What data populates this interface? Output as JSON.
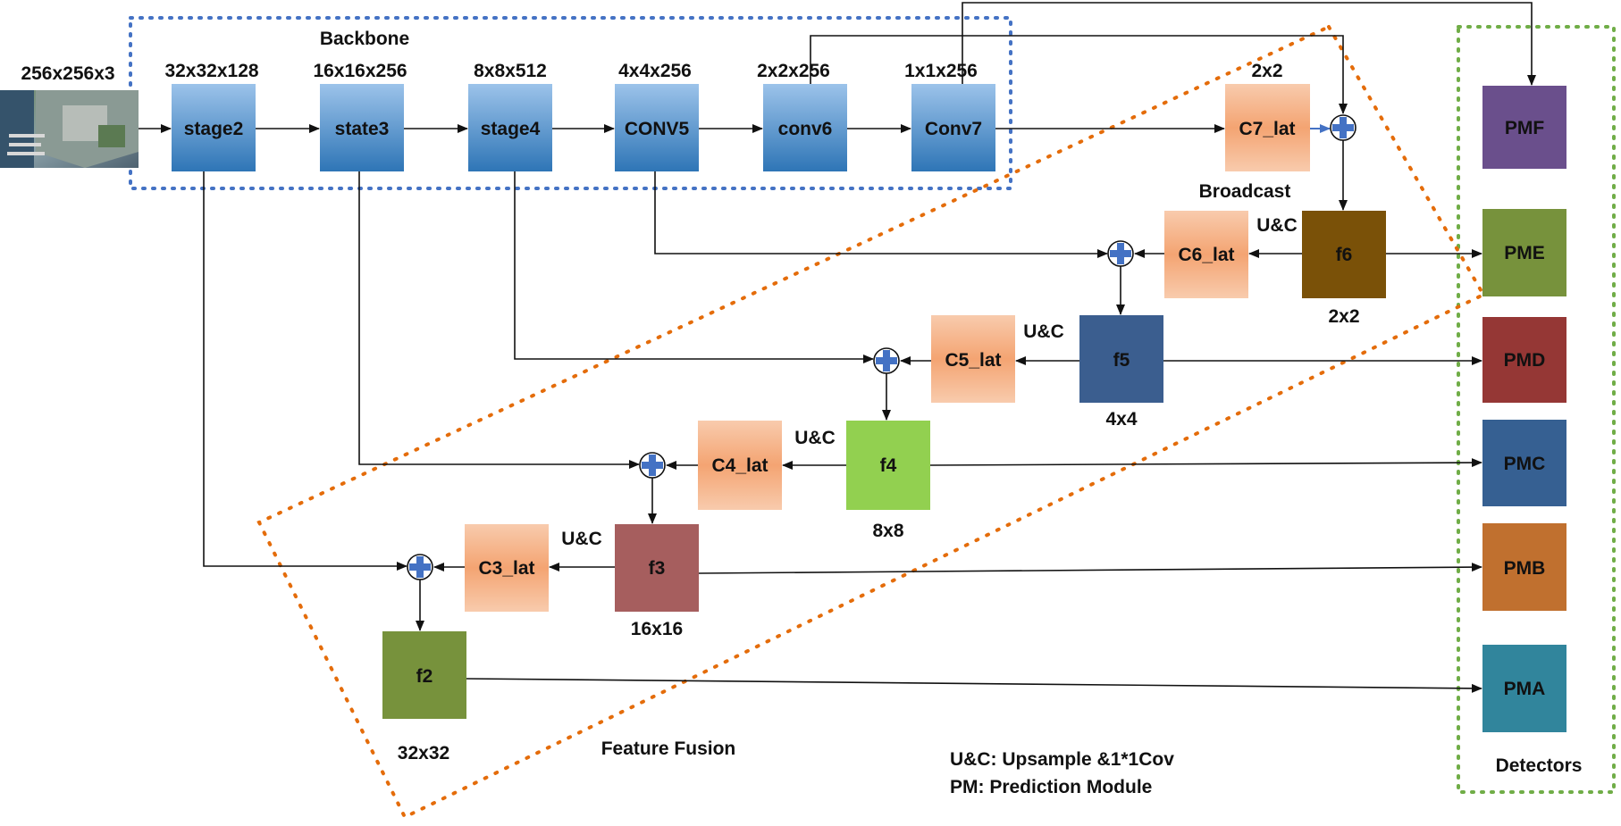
{
  "input": {
    "size_label": "256x256x3",
    "image_desc": "satellite-harbor-image"
  },
  "backbone": {
    "title": "Backbone",
    "stages": [
      {
        "name": "stage2",
        "size": "32x32x128"
      },
      {
        "name": "state3",
        "size": "16x16x256"
      },
      {
        "name": "stage4",
        "size": "8x8x512"
      },
      {
        "name": "CONV5",
        "size": "4x4x256"
      },
      {
        "name": "conv6",
        "size": "2x2x256"
      },
      {
        "name": "Conv7",
        "size": "1x1x256"
      }
    ]
  },
  "lateral": {
    "c7": {
      "name": "C7_lat",
      "size": "2x2",
      "note": "Broadcast"
    },
    "c6": {
      "name": "C6_lat"
    },
    "c5": {
      "name": "C5_lat"
    },
    "c4": {
      "name": "C4_lat"
    },
    "c3": {
      "name": "C3_lat"
    }
  },
  "uc_label": "U&C",
  "fused": {
    "f6": {
      "name": "f6",
      "size": "2x2"
    },
    "f5": {
      "name": "f5",
      "size": "4x4"
    },
    "f4": {
      "name": "f4",
      "size": "8x8"
    },
    "f3": {
      "name": "f3",
      "size": "16x16"
    },
    "f2": {
      "name": "f2",
      "size": "32x32"
    }
  },
  "feature_fusion_label": "Feature Fusion",
  "detectors": {
    "title": "Detectors",
    "modules": [
      "PMF",
      "PME",
      "PMD",
      "PMC",
      "PMB",
      "PMA"
    ],
    "colors": {
      "PMF": "#6a4f8c",
      "PME": "#77923c",
      "PMD": "#953735",
      "PMC": "#366092",
      "PMB": "#c0702f",
      "PMA": "#31859c"
    }
  },
  "legend": {
    "uc": "U&C: Upsample &1*1Cov",
    "pm": "PM: Prediction Module"
  },
  "colors": {
    "backbone_border": "#4472c4",
    "fusion_border": "#e46c0a",
    "detector_border": "#70ad47",
    "f6": "#7a5108",
    "f5": "#3b5e8f",
    "f4": "#92d050",
    "f3": "#a65e5e",
    "f2": "#77923c"
  }
}
